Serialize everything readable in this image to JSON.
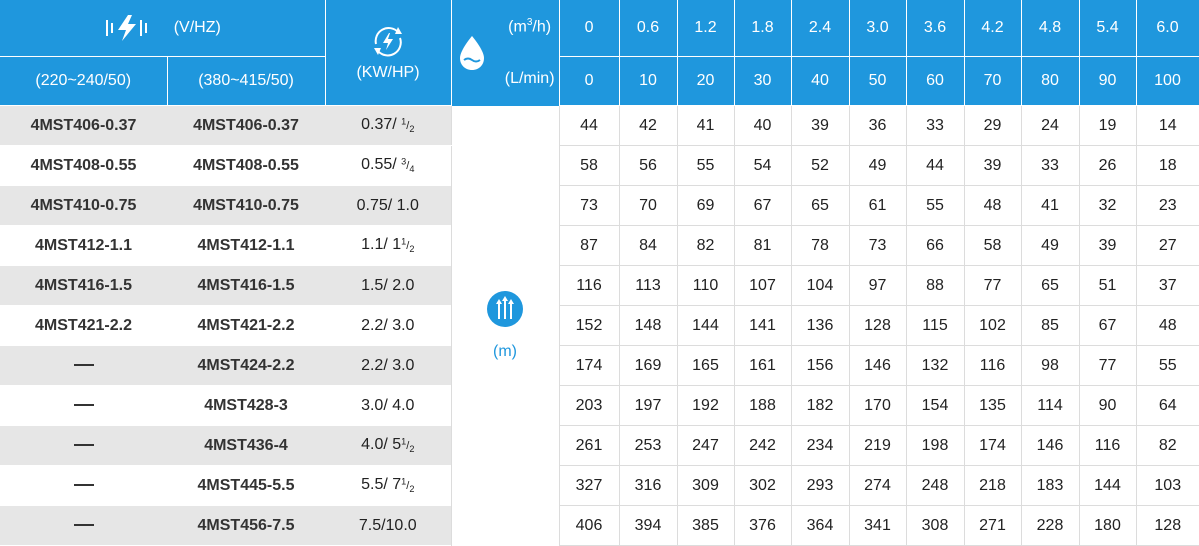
{
  "header": {
    "voltage_label": "(V/HZ)",
    "voltage_sub_1": "(220~240/50)",
    "voltage_sub_2": "(380~415/50)",
    "power_label": "(KW/HP)",
    "flow_unit_1_prefix": "(m",
    "flow_unit_1_sup": "3",
    "flow_unit_1_suffix": "/h)",
    "flow_unit_2": "(L/min)",
    "flow_m3h": [
      "0",
      "0.6",
      "1.2",
      "1.8",
      "2.4",
      "3.0",
      "3.6",
      "4.2",
      "4.8",
      "5.4",
      "6.0"
    ],
    "flow_lmin": [
      "0",
      "10",
      "20",
      "30",
      "40",
      "50",
      "60",
      "70",
      "80",
      "90",
      "100"
    ],
    "head_label": "(m)"
  },
  "icons": {
    "voltage": "lightning-voltage-icon",
    "power": "power-rotation-icon",
    "flow": "water-drop-icon",
    "head": "head-lift-arrows-icon"
  },
  "colors": {
    "header_blue": "#1f97dd",
    "row_shade": "#e6e6e6"
  },
  "rows": [
    {
      "m1": "4MST406-0.37",
      "m2": "4MST406-0.37",
      "kw": "0.37/ ",
      "hp_n": "1",
      "hp_d": "2",
      "hp_w": "",
      "values": [
        "44",
        "42",
        "41",
        "40",
        "39",
        "36",
        "33",
        "29",
        "24",
        "19",
        "14"
      ]
    },
    {
      "m1": "4MST408-0.55",
      "m2": "4MST408-0.55",
      "kw": "0.55/ ",
      "hp_n": "3",
      "hp_d": "4",
      "hp_w": "",
      "values": [
        "58",
        "56",
        "55",
        "54",
        "52",
        "49",
        "44",
        "39",
        "33",
        "26",
        "18"
      ]
    },
    {
      "m1": "4MST410-0.75",
      "m2": "4MST410-0.75",
      "kw": "0.75/ 1.0",
      "hp_n": "",
      "hp_d": "",
      "hp_w": "",
      "values": [
        "73",
        "70",
        "69",
        "67",
        "65",
        "61",
        "55",
        "48",
        "41",
        "32",
        "23"
      ]
    },
    {
      "m1": "4MST412-1.1",
      "m2": "4MST412-1.1",
      "kw": "1.1/ 1",
      "hp_n": "1",
      "hp_d": "2",
      "hp_w": "",
      "values": [
        "87",
        "84",
        "82",
        "81",
        "78",
        "73",
        "66",
        "58",
        "49",
        "39",
        "27"
      ]
    },
    {
      "m1": "4MST416-1.5",
      "m2": "4MST416-1.5",
      "kw": "1.5/ 2.0",
      "hp_n": "",
      "hp_d": "",
      "hp_w": "",
      "values": [
        "116",
        "113",
        "110",
        "107",
        "104",
        "97",
        "88",
        "77",
        "65",
        "51",
        "37"
      ]
    },
    {
      "m1": "4MST421-2.2",
      "m2": "4MST421-2.2",
      "kw": "2.2/ 3.0",
      "hp_n": "",
      "hp_d": "",
      "hp_w": "",
      "values": [
        "152",
        "148",
        "144",
        "141",
        "136",
        "128",
        "115",
        "102",
        "85",
        "67",
        "48"
      ]
    },
    {
      "m1": "",
      "m2": "4MST424-2.2",
      "kw": "2.2/ 3.0",
      "hp_n": "",
      "hp_d": "",
      "hp_w": "",
      "values": [
        "174",
        "169",
        "165",
        "161",
        "156",
        "146",
        "132",
        "116",
        "98",
        "77",
        "55"
      ]
    },
    {
      "m1": "",
      "m2": "4MST428-3",
      "kw": "3.0/ 4.0",
      "hp_n": "",
      "hp_d": "",
      "hp_w": "",
      "values": [
        "203",
        "197",
        "192",
        "188",
        "182",
        "170",
        "154",
        "135",
        "114",
        "90",
        "64"
      ]
    },
    {
      "m1": "",
      "m2": "4MST436-4",
      "kw": "4.0/ 5",
      "hp_n": "1",
      "hp_d": "2",
      "hp_w": "",
      "values": [
        "261",
        "253",
        "247",
        "242",
        "234",
        "219",
        "198",
        "174",
        "146",
        "116",
        "82"
      ]
    },
    {
      "m1": "",
      "m2": "4MST445-5.5",
      "kw": "5.5/ 7",
      "hp_n": "1",
      "hp_d": "2",
      "hp_w": "",
      "values": [
        "327",
        "316",
        "309",
        "302",
        "293",
        "274",
        "248",
        "218",
        "183",
        "144",
        "103"
      ]
    },
    {
      "m1": "",
      "m2": "4MST456-7.5",
      "kw": "7.5/10.0",
      "hp_n": "",
      "hp_d": "",
      "hp_w": "",
      "values": [
        "406",
        "394",
        "385",
        "376",
        "364",
        "341",
        "308",
        "271",
        "228",
        "180",
        "128"
      ]
    }
  ]
}
